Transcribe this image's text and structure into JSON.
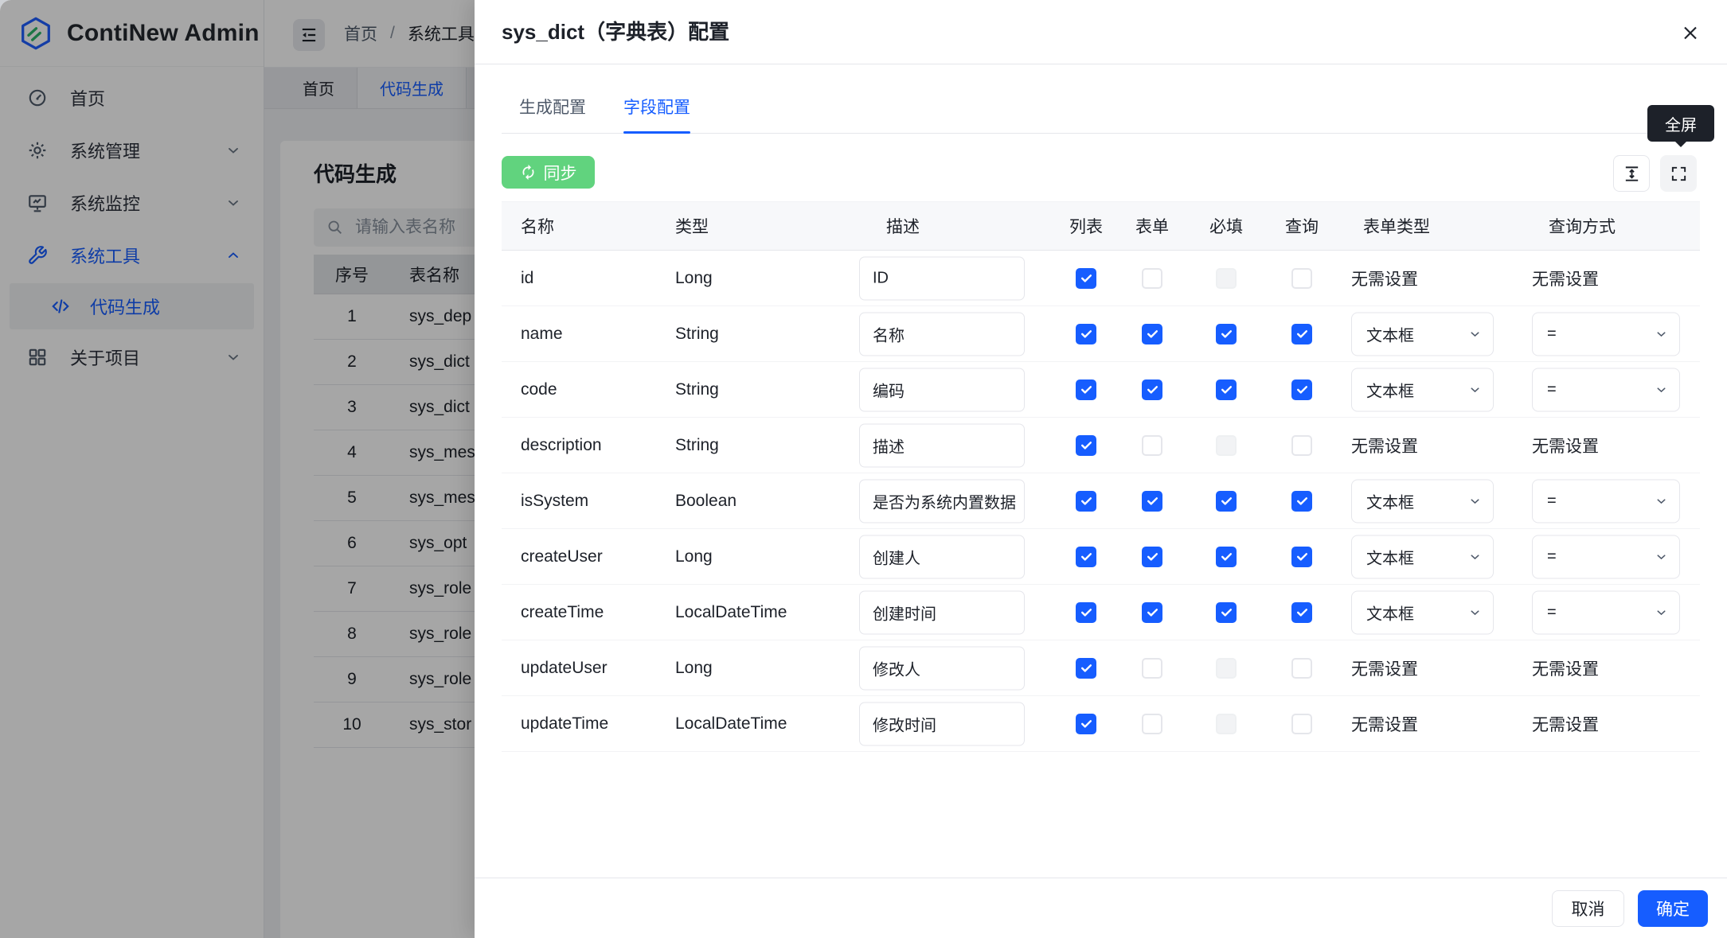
{
  "app": {
    "name": "ContiNew Admin"
  },
  "sidebar": {
    "items": [
      {
        "label": "首页",
        "icon": "dashboard-icon",
        "chevron": null,
        "active": false
      },
      {
        "label": "系统管理",
        "icon": "gear-icon",
        "chevron": "down",
        "active": false
      },
      {
        "label": "系统监控",
        "icon": "monitor-icon",
        "chevron": "down",
        "active": false
      },
      {
        "label": "系统工具",
        "icon": "wrench-icon",
        "chevron": "up",
        "active": true
      },
      {
        "label": "关于项目",
        "icon": "grid-icon",
        "chevron": "down",
        "active": false
      }
    ],
    "sub_item": {
      "label": "代码生成",
      "icon": "code-icon",
      "active": true,
      "after_index": 3
    }
  },
  "topbar": {
    "breadcrumb": [
      "首页",
      "系统工具"
    ],
    "separator": "/"
  },
  "page_tabs": [
    {
      "label": "首页",
      "active": false
    },
    {
      "label": "代码生成",
      "active": true
    }
  ],
  "content": {
    "title": "代码生成",
    "search_placeholder": "请输入表名称",
    "table": {
      "columns": [
        "序号",
        "表名称"
      ],
      "rows": [
        {
          "no": "1",
          "table": "sys_dep"
        },
        {
          "no": "2",
          "table": "sys_dict"
        },
        {
          "no": "3",
          "table": "sys_dict"
        },
        {
          "no": "4",
          "table": "sys_mes"
        },
        {
          "no": "5",
          "table": "sys_mes"
        },
        {
          "no": "6",
          "table": "sys_opt"
        },
        {
          "no": "7",
          "table": "sys_role"
        },
        {
          "no": "8",
          "table": "sys_role"
        },
        {
          "no": "9",
          "table": "sys_role"
        },
        {
          "no": "10",
          "table": "sys_stor"
        }
      ]
    }
  },
  "drawer": {
    "title": "sys_dict（字典表）配置",
    "tabs": [
      {
        "label": "生成配置",
        "active": false
      },
      {
        "label": "字段配置",
        "active": true
      }
    ],
    "sync_button_label": "同步",
    "fullscreen_tooltip": "全屏",
    "field_table": {
      "columns": [
        "名称",
        "类型",
        "描述",
        "列表",
        "表单",
        "必填",
        "查询",
        "表单类型",
        "查询方式"
      ],
      "no_setting_label": "无需设置",
      "form_type_option": "文本框",
      "query_type_option": "=",
      "rows": [
        {
          "name": "id",
          "type": "Long",
          "comment": "ID",
          "list": "checked",
          "form": "unchecked",
          "required": "disabled",
          "query": "unchecked",
          "form_type": null,
          "query_type": null
        },
        {
          "name": "name",
          "type": "String",
          "comment": "名称",
          "list": "checked",
          "form": "checked",
          "required": "checked",
          "query": "checked",
          "form_type": "文本框",
          "query_type": "="
        },
        {
          "name": "code",
          "type": "String",
          "comment": "编码",
          "list": "checked",
          "form": "checked",
          "required": "checked",
          "query": "checked",
          "form_type": "文本框",
          "query_type": "="
        },
        {
          "name": "description",
          "type": "String",
          "comment": "描述",
          "list": "checked",
          "form": "unchecked",
          "required": "disabled",
          "query": "unchecked",
          "form_type": null,
          "query_type": null
        },
        {
          "name": "isSystem",
          "type": "Boolean",
          "comment": "是否为系统内置数据",
          "list": "checked",
          "form": "checked",
          "required": "checked",
          "query": "checked",
          "form_type": "文本框",
          "query_type": "="
        },
        {
          "name": "createUser",
          "type": "Long",
          "comment": "创建人",
          "list": "checked",
          "form": "checked",
          "required": "checked",
          "query": "checked",
          "form_type": "文本框",
          "query_type": "="
        },
        {
          "name": "createTime",
          "type": "LocalDateTime",
          "comment": "创建时间",
          "list": "checked",
          "form": "checked",
          "required": "checked",
          "query": "checked",
          "form_type": "文本框",
          "query_type": "="
        },
        {
          "name": "updateUser",
          "type": "Long",
          "comment": "修改人",
          "list": "checked",
          "form": "unchecked",
          "required": "disabled",
          "query": "unchecked",
          "form_type": null,
          "query_type": null
        },
        {
          "name": "updateTime",
          "type": "LocalDateTime",
          "comment": "修改时间",
          "list": "checked",
          "form": "unchecked",
          "required": "disabled",
          "query": "unchecked",
          "form_type": null,
          "query_type": null
        }
      ]
    },
    "footer": {
      "cancel_label": "取消",
      "confirm_label": "确定"
    }
  },
  "colors": {
    "primary": "#165DFF",
    "sync_button_green": "#61D37E",
    "tooltip_bg": "#1D2129",
    "border": "#E5E6EB",
    "table_header_bg": "#F7F8FA",
    "disabled_checkbox_bg": "#F2F3F5"
  }
}
